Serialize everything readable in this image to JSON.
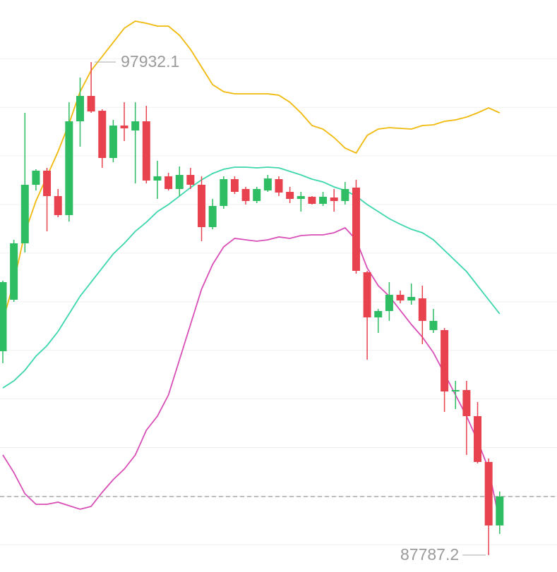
{
  "chart_data": {
    "type": "candlestick",
    "ylim": [
      87439,
      99209
    ],
    "gridlines": [
      88000,
      89000,
      90000,
      91000,
      92000,
      93000,
      94000,
      95000,
      96000,
      97000,
      98000
    ],
    "up_color": "#2ebd62",
    "down_color": "#e8424f",
    "open": [
      91982,
      93041,
      94202,
      95407,
      95697,
      95174,
      94783,
      96713,
      97235,
      96930,
      95958,
      96626,
      96524,
      96713,
      95494,
      95581,
      95320,
      95610,
      95407,
      94536,
      94971,
      95523,
      95320,
      95073,
      95290,
      95523,
      95261,
      95116,
      95160,
      95015,
      95145,
      95073,
      95349,
      93607,
      92678,
      92809,
      93143,
      93026,
      93070,
      92417,
      92417,
      91154,
      91183,
      90646,
      89703,
      88397
    ],
    "high": [
      93433,
      94275,
      96887,
      95726,
      95755,
      95320,
      97105,
      97613,
      97932.1,
      96959,
      96742,
      97105,
      97105,
      97032,
      95900,
      95653,
      95784,
      95755,
      95581,
      95116,
      95581,
      95581,
      95363,
      95363,
      95610,
      95581,
      95363,
      95261,
      95174,
      95261,
      95320,
      95465,
      95508,
      93636,
      92852,
      93404,
      93230,
      93375,
      93331,
      92852,
      92460,
      91372,
      91372,
      90937,
      89776,
      89093
    ],
    "low": [
      91735,
      92997,
      94013,
      95290,
      94449,
      94739,
      94652,
      96190,
      96887,
      95755,
      95871,
      96306,
      95436,
      95436,
      95116,
      95290,
      95174,
      95320,
      94246,
      94492,
      94913,
      95218,
      95000,
      95029,
      95261,
      95174,
      95029,
      94855,
      95000,
      94971,
      94855,
      95000,
      93578,
      91807,
      92359,
      92606,
      92968,
      92939,
      92127,
      92359,
      90733,
      90791,
      89848,
      89674,
      87787.2,
      88223
    ],
    "close": [
      93404,
      94202,
      95407,
      95697,
      95174,
      94783,
      96713,
      97235,
      96916,
      95958,
      96626,
      96568,
      96713,
      95494,
      95581,
      95320,
      95610,
      95407,
      94536,
      94971,
      95523,
      95261,
      95073,
      95320,
      95537,
      95247,
      95116,
      95174,
      95015,
      95160,
      95073,
      95320,
      93636,
      92678,
      92809,
      93143,
      93026,
      93099,
      92606,
      92606,
      91154,
      91183,
      90646,
      89703,
      88397,
      88992
    ],
    "series": [
      {
        "color": "#f0b90b",
        "values": [
          92606,
          93404,
          94420,
          95073,
          95581,
          96089,
          96669,
          97322,
          97758,
          98048,
          98338,
          98628,
          98774,
          98730,
          98672,
          98672,
          98483,
          98193,
          97830,
          97467,
          97322,
          97279,
          97279,
          97279,
          97279,
          97250,
          97105,
          96887,
          96626,
          96553,
          96379,
          96161,
          96060,
          96423,
          96553,
          96582,
          96568,
          96553,
          96626,
          96640,
          96713,
          96742,
          96800,
          96887,
          96989,
          96887
        ]
      },
      {
        "color": "#3dd6ad",
        "values": [
          91227,
          91372,
          91590,
          91880,
          92098,
          92388,
          92751,
          93114,
          93404,
          93694,
          93984,
          94202,
          94449,
          94637,
          94855,
          95000,
          95174,
          95349,
          95508,
          95639,
          95726,
          95769,
          95769,
          95755,
          95769,
          95755,
          95682,
          95610,
          95523,
          95465,
          95363,
          95290,
          95174,
          95000,
          94855,
          94710,
          94594,
          94492,
          94420,
          94275,
          94057,
          93839,
          93621,
          93331,
          93041,
          92751
        ]
      },
      {
        "color": "#d94fb8",
        "values": [
          89848,
          89485,
          89050,
          88832,
          88832,
          88876,
          88803,
          88731,
          88789,
          89079,
          89340,
          89558,
          89848,
          90356,
          90646,
          91082,
          91807,
          92533,
          93259,
          93767,
          94129,
          94304,
          94275,
          94246,
          94275,
          94333,
          94304,
          94362,
          94376,
          94376,
          94420,
          94521,
          94275,
          93694,
          93331,
          93114,
          92823,
          92533,
          92272,
          91952,
          91517,
          91082,
          90646,
          90138,
          89558,
          88469
        ]
      }
    ]
  }
}
